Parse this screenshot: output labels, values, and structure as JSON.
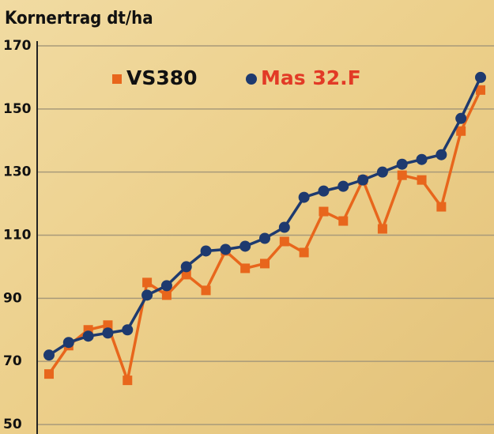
{
  "chart_data": {
    "type": "line",
    "title": "Kornertrag dt/ha",
    "categories": [
      null,
      null,
      null,
      null,
      null,
      null,
      null,
      null,
      null,
      null,
      null,
      null,
      null,
      null,
      null,
      null,
      null,
      null,
      null,
      null,
      null,
      null,
      null
    ],
    "series": [
      {
        "name": "VS380",
        "color": "#e8661c",
        "label_color": "#111111",
        "marker": "square",
        "values": [
          66,
          75,
          80,
          81.5,
          64,
          95,
          91,
          97.5,
          92.5,
          105,
          99.5,
          101,
          108,
          104.5,
          117.5,
          114.5,
          127.5,
          112,
          129,
          127.5,
          119,
          143,
          156
        ]
      },
      {
        "name": "Mas 32.F",
        "color": "#1e3a6f",
        "label_color": "#e23a26",
        "marker": "circle",
        "values": [
          72,
          76,
          78,
          79,
          80,
          91,
          94,
          100,
          105,
          105.5,
          106.5,
          109,
          112.5,
          122,
          124,
          125.5,
          127.5,
          130,
          132.5,
          134,
          135.5,
          147,
          160
        ]
      }
    ],
    "ylim": [
      50,
      170
    ],
    "yticks": [
      50,
      70,
      90,
      110,
      130,
      150,
      170
    ],
    "grid": true,
    "legend": "top"
  }
}
